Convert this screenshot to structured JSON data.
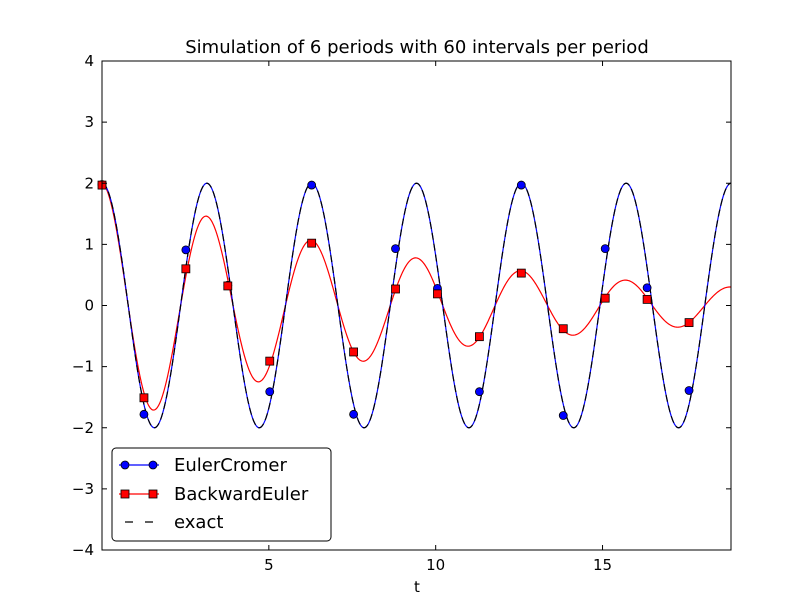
{
  "chart_data": {
    "type": "line",
    "title": "Simulation of 6 periods with 60 intervals per period",
    "xlabel": "t",
    "ylabel": "",
    "xlim": [
      0,
      18.85
    ],
    "ylim": [
      -4,
      4
    ],
    "xticks": [
      5,
      10,
      15
    ],
    "xtick_labels": [
      "5",
      "10",
      "15"
    ],
    "yticks": [
      -4,
      -3,
      -2,
      -1,
      0,
      1,
      2,
      3,
      4
    ],
    "ytick_labels": [
      "−4",
      "−3",
      "−2",
      "−1",
      "0",
      "1",
      "2",
      "3",
      "4"
    ],
    "grid": false,
    "legend_position": "lower-left",
    "series": [
      {
        "name": "EulerCromer",
        "color": "#0000ff",
        "marker": "circle",
        "markers": {
          "x": [
            0,
            1.257,
            2.513,
            3.77,
            5.027,
            6.283,
            7.54,
            8.796,
            10.053,
            11.31,
            12.566,
            13.823,
            15.08,
            16.336,
            17.593
          ],
          "y": [
            1.98,
            -1.78,
            0.91,
            0.33,
            -1.41,
            1.97,
            -1.78,
            0.93,
            0.28,
            -1.41,
            1.97,
            -1.8,
            0.93,
            0.29,
            -1.39
          ]
        }
      },
      {
        "name": "BackwardEuler",
        "color": "#ff0000",
        "marker": "square",
        "markers": {
          "x": [
            0,
            1.257,
            2.513,
            3.77,
            5.027,
            6.283,
            7.54,
            8.796,
            10.053,
            11.31,
            12.566,
            13.823,
            15.08,
            16.336,
            17.593
          ],
          "y": [
            1.97,
            -1.51,
            0.6,
            0.32,
            -0.91,
            1.02,
            -0.76,
            0.27,
            0.19,
            -0.51,
            0.53,
            -0.38,
            0.12,
            0.1,
            -0.28
          ]
        },
        "damping_per_period": 0.73
      },
      {
        "name": "exact",
        "color": "#000000",
        "style": "dashed",
        "amplitude": 2,
        "period": 3.1416
      }
    ]
  }
}
